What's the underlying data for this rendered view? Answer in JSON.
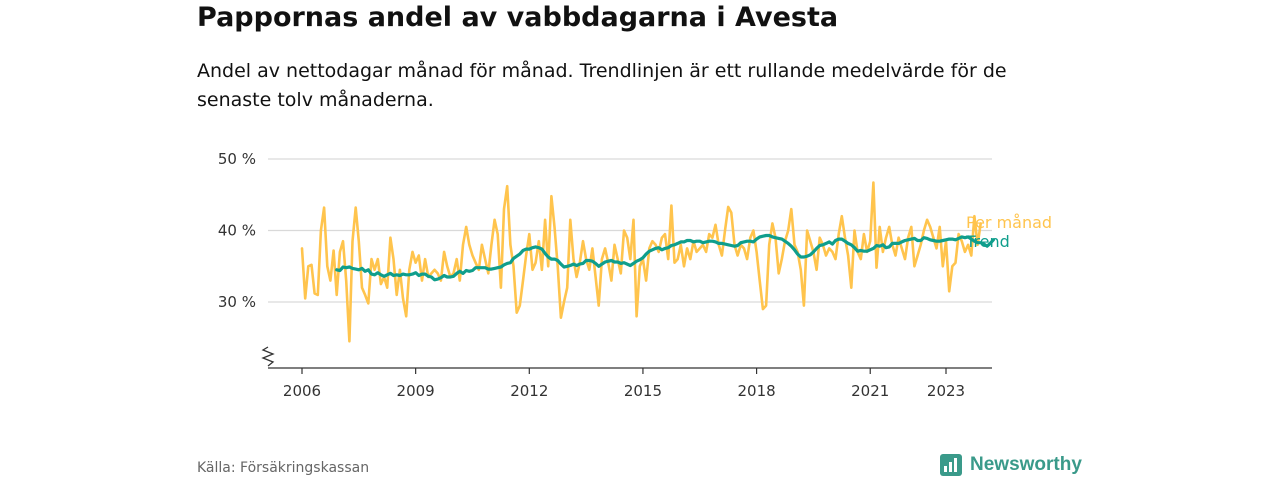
{
  "title": "Pappornas andel av vabbdagarna i Avesta",
  "subtitle": "Andel av nettodagar månad för månad. Trendlinjen är ett rullande medelvärde för de senaste tolv månaderna.",
  "source": "Källa: Försäkringskassan",
  "brand": {
    "name": "Newsworthy",
    "icon": "bar-chart-icon",
    "color": "#3a9a8a"
  },
  "chart_data": {
    "type": "line",
    "x_unit": "year",
    "xlim": [
      2005.5,
      2024.2
    ],
    "ylim": [
      20,
      50
    ],
    "y_ticks": [
      30,
      40,
      50
    ],
    "y_tick_labels": [
      "30 %",
      "40 %",
      "50 %"
    ],
    "x_ticks": [
      2006,
      2009,
      2012,
      2015,
      2018,
      2021,
      2023
    ],
    "x_tick_labels": [
      "2006",
      "2009",
      "2012",
      "2015",
      "2018",
      "2021",
      "2023"
    ],
    "grid": true,
    "y_axis_break": true,
    "legend": "inline-right",
    "series": [
      {
        "name": "Per månad",
        "color": "#ffc44d",
        "x_start": 2006.0,
        "x_step_months": 1,
        "values": [
          37.5,
          30.5,
          35,
          35.2,
          31.2,
          31,
          40,
          43.2,
          35,
          33,
          37.2,
          31,
          37,
          38.5,
          33,
          24.5,
          38.5,
          43.2,
          38.5,
          32,
          31,
          29.8,
          36,
          34.5,
          36,
          32.5,
          33.5,
          32,
          39,
          36,
          31,
          34.5,
          30.5,
          28,
          34.5,
          37,
          35.5,
          36.5,
          33,
          36,
          33.5,
          34,
          34.5,
          34,
          33,
          37,
          35,
          33.5,
          34,
          36,
          33,
          38,
          40.5,
          38,
          36.5,
          35.5,
          34.5,
          38,
          36,
          34,
          38,
          41.5,
          39.5,
          32,
          43,
          46.2,
          38,
          35,
          28.5,
          29.5,
          33,
          36.5,
          39.5,
          34.5,
          35.5,
          38.5,
          34.5,
          41.5,
          35,
          44.8,
          40.5,
          35,
          27.8,
          30,
          32,
          41.5,
          36,
          33.5,
          35.5,
          38.5,
          36,
          34.5,
          37.5,
          33.5,
          29.5,
          36,
          37.5,
          35.5,
          33,
          38,
          36,
          34,
          40,
          39,
          36,
          41.5,
          28,
          35,
          36,
          33,
          37.5,
          38.5,
          38,
          37,
          39,
          39.5,
          36,
          43.5,
          35.5,
          36,
          38,
          35,
          37.5,
          36,
          38.5,
          37,
          37.5,
          38,
          37,
          39.5,
          39,
          40.8,
          38,
          36.5,
          40,
          43.3,
          42.5,
          38,
          36.5,
          38,
          37.5,
          36,
          39,
          40,
          37,
          33,
          29,
          29.5,
          38,
          41,
          39,
          34,
          36,
          38.5,
          40,
          43,
          38,
          37,
          34.5,
          29.5,
          40,
          38.5,
          37,
          34.5,
          39,
          38,
          36.5,
          37.5,
          37,
          36,
          39.5,
          42,
          39,
          36.5,
          32,
          40,
          37,
          36,
          39.5,
          37,
          38.5,
          46.7,
          34.8,
          40.5,
          37,
          39,
          40.5,
          38,
          36.5,
          39,
          37.5,
          36,
          39,
          40.5,
          35,
          36.5,
          38,
          40,
          41.5,
          40.5,
          39,
          37.5,
          40.5,
          35,
          38.5,
          31.5,
          35,
          35.5,
          39.5,
          38.5,
          37,
          38,
          36.5,
          42,
          38,
          41
        ]
      },
      {
        "name": "Trend",
        "color": "#0f9e8c",
        "x_start": 2006.917,
        "x_step_months": 1,
        "values": [
          34.5,
          34.4,
          34.9,
          34.8,
          34.9,
          34.7,
          34.6,
          34.5,
          34.7,
          34.3,
          34.5,
          33.9,
          33.8,
          34.1,
          33.8,
          33.6,
          33.8,
          34,
          33.7,
          33.8,
          33.7,
          33.9,
          33.8,
          33.8,
          33.9,
          34.1,
          33.7,
          33.9,
          33.9,
          33.6,
          33.5,
          33.1,
          33.2,
          33.4,
          33.7,
          33.5,
          33.5,
          33.6,
          34,
          34.3,
          34,
          34.4,
          34.3,
          34.4,
          34.8,
          34.8,
          34.8,
          34.8,
          34.6,
          34.6,
          34.7,
          34.8,
          34.9,
          35.2,
          35.4,
          35.5,
          36.1,
          36.4,
          36.7,
          37.2,
          37.4,
          37.4,
          37.6,
          37.7,
          37.6,
          37.4,
          36.8,
          36.3,
          36,
          36,
          35.8,
          35.3,
          34.9,
          35,
          35.1,
          35.3,
          35.1,
          35.3,
          35.4,
          35.8,
          35.8,
          35.7,
          35.4,
          35,
          35.3,
          35.6,
          35.7,
          35.8,
          35.6,
          35.6,
          35.4,
          35.5,
          35.3,
          35.1,
          35.4,
          35.7,
          35.9,
          36.2,
          36.7,
          37.1,
          37.3,
          37.5,
          37.6,
          37.3,
          37.5,
          37.6,
          37.9,
          38,
          38.2,
          38.4,
          38.4,
          38.6,
          38.6,
          38.4,
          38.5,
          38.5,
          38.3,
          38.4,
          38.5,
          38.5,
          38.4,
          38.2,
          38.2,
          38.1,
          38,
          37.9,
          37.8,
          37.9,
          38.3,
          38.4,
          38.5,
          38.5,
          38.4,
          38.8,
          39.1,
          39.2,
          39.3,
          39.3,
          39.1,
          39,
          38.9,
          38.8,
          38.5,
          38.2,
          37.8,
          37.3,
          36.7,
          36.3,
          36.3,
          36.4,
          36.6,
          37,
          37.5,
          37.9,
          38,
          38.2,
          38.4,
          38.1,
          38.6,
          38.8,
          38.8,
          38.5,
          38.2,
          38,
          37.6,
          37.1,
          37.2,
          37.1,
          37.1,
          37.3,
          37.5,
          37.9,
          37.8,
          38,
          37.6,
          37.7,
          38.2,
          38.2,
          38.2,
          38.4,
          38.6,
          38.7,
          38.8,
          38.9,
          38.6,
          38.6,
          39,
          38.9,
          38.7,
          38.6,
          38.5,
          38.5,
          38.6,
          38.7,
          38.8,
          38.8,
          38.7,
          38.9,
          39.1,
          39,
          39.1,
          38.8,
          38.5,
          38.3,
          38.3,
          38.1,
          37.8,
          38.2,
          38.7
        ]
      }
    ]
  }
}
